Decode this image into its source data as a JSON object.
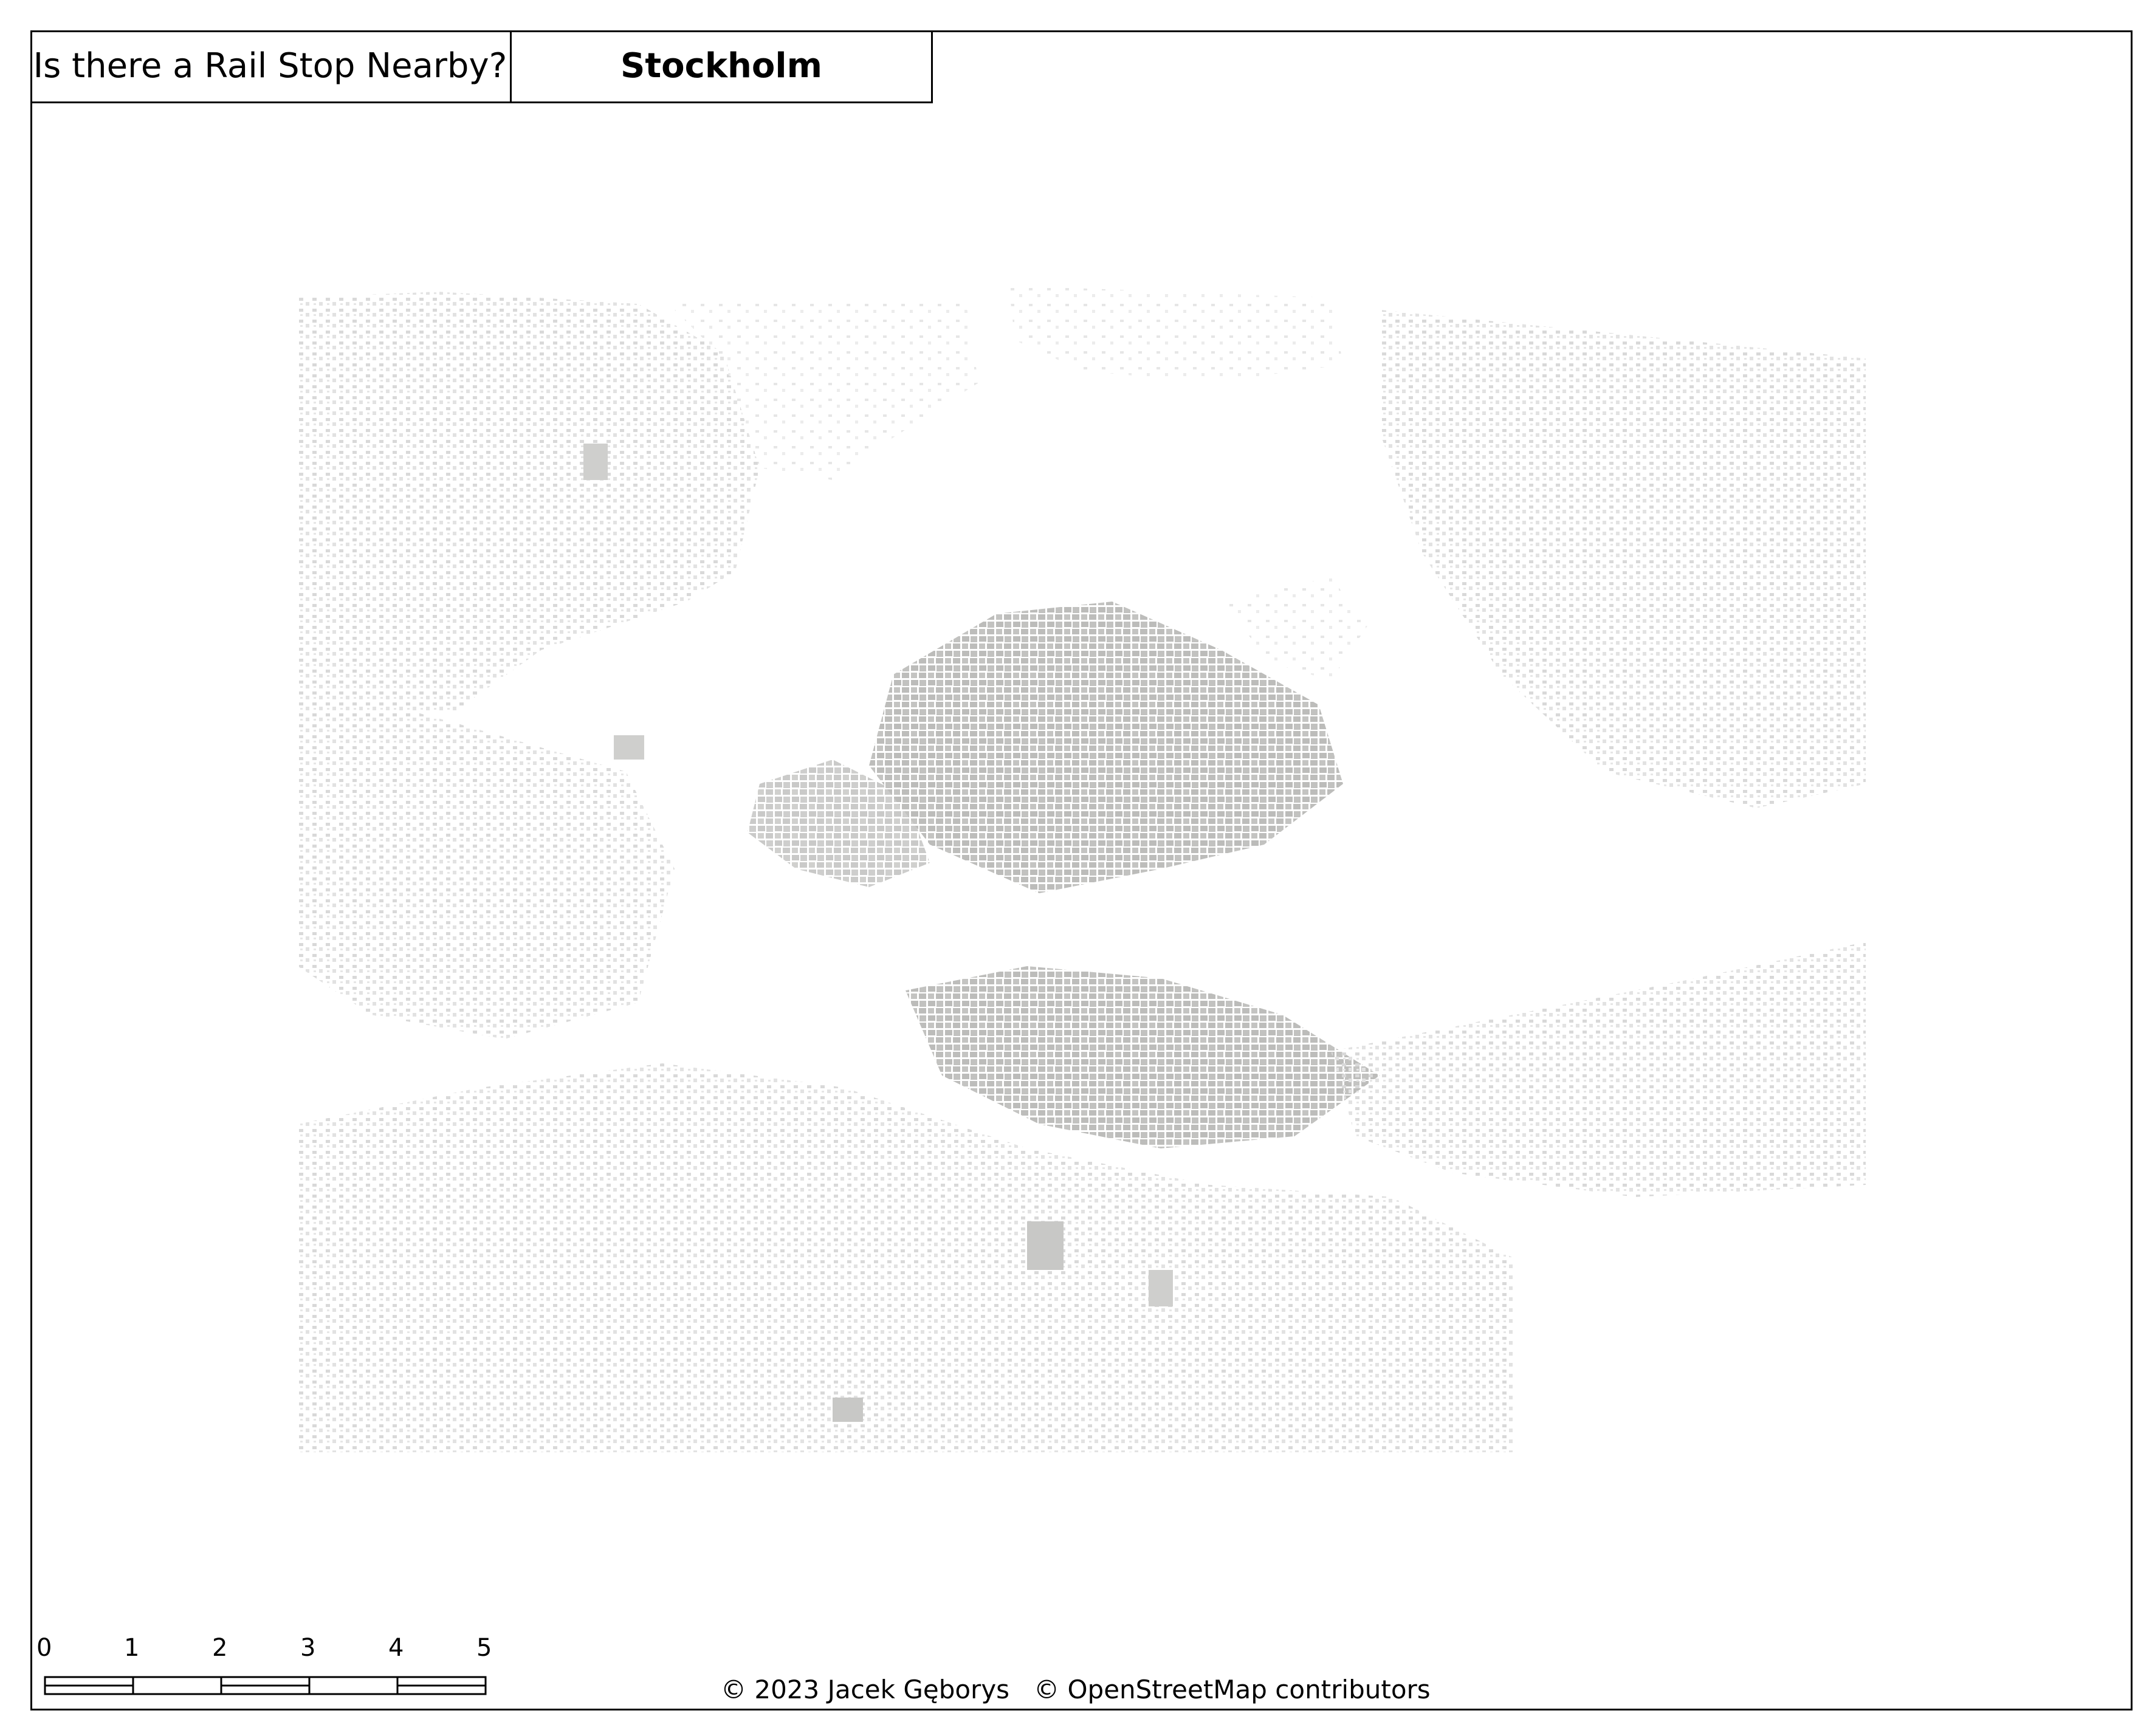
{
  "title": "Is there a Rail Stop Nearby?",
  "city": "Stockholm",
  "scale_bar": {
    "ticks": [
      "0",
      "1",
      "2",
      "3",
      "4",
      "5 km"
    ]
  },
  "attribution": {
    "author": "© 2023 Jacek Gęborys",
    "osm": "© OpenStreetMap contributors"
  },
  "colors": {
    "frame": "#000000",
    "background": "#ffffff",
    "buildings_dense": "#bdbdbb",
    "buildings_sparse": "#dcdcdc",
    "buildings_light": "#ebebeb"
  }
}
